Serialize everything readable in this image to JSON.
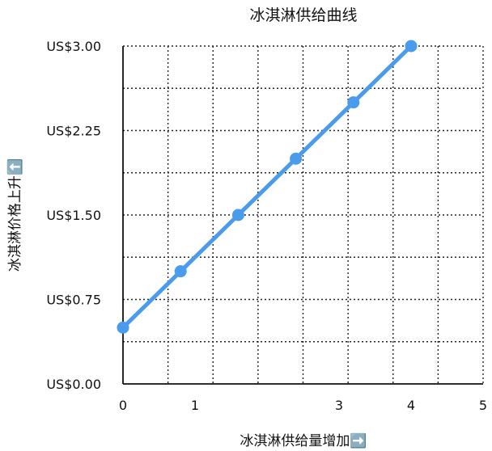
{
  "chart_data": {
    "type": "line",
    "title": "冰淇淋供给曲线",
    "xlabel": "冰淇淋供给量增加➡️",
    "ylabel": "冰淇淋价格上升⬆️",
    "x_ticks": [
      "0",
      "1",
      "3",
      "4",
      "5"
    ],
    "x_tick_values": [
      0,
      1,
      3,
      4,
      5
    ],
    "y_ticks": [
      "US$0.00",
      "US$0.75",
      "US$1.50",
      "US$2.25",
      "US$3.00"
    ],
    "y_tick_values": [
      0,
      0.75,
      1.5,
      2.25,
      3.0
    ],
    "xlim": [
      0,
      5
    ],
    "ylim": [
      0,
      3
    ],
    "grid": true,
    "series": [
      {
        "x": [
          0,
          0.8,
          1.6,
          2.4,
          3.2,
          4.0
        ],
        "values": [
          0.5,
          1.0,
          1.5,
          2.0,
          2.5,
          3.0
        ]
      }
    ],
    "colors": {
      "line": "#4a9bec",
      "marker": "#4a9bec"
    }
  }
}
